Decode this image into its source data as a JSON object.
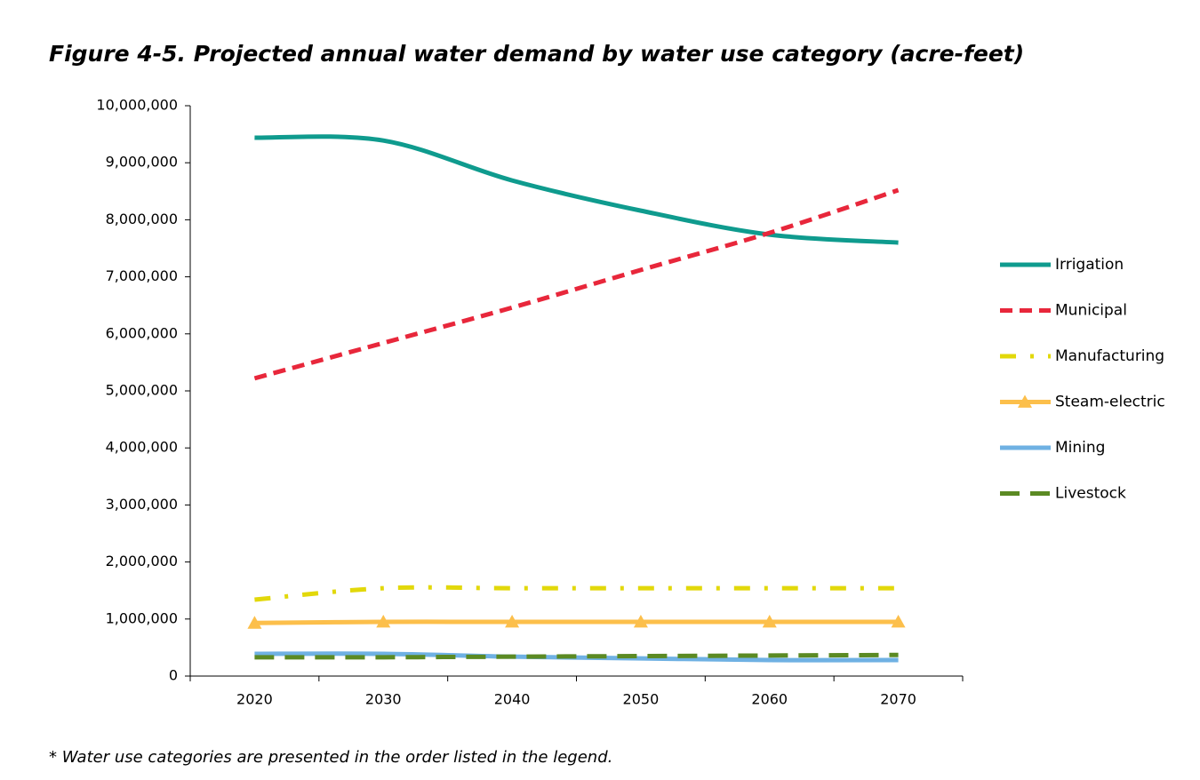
{
  "chart_data": {
    "type": "line",
    "title": "Figure 4-5. Projected annual water demand by water use category (acre-feet)",
    "footnote": "* Water use categories are presented in the order listed in the legend.",
    "categories": [
      "2020",
      "2030",
      "2040",
      "2050",
      "2060",
      "2070"
    ],
    "ylim": [
      0,
      10000000
    ],
    "yticks": [
      0,
      {
        "value": 1000000,
        "label": "1,000,000"
      },
      {
        "value": 2000000,
        "label": "2,000,000"
      },
      {
        "value": 3000000,
        "label": "3,000,000"
      },
      {
        "value": 4000000,
        "label": "4,000,000"
      },
      {
        "value": 5000000,
        "label": "5,000,000"
      },
      {
        "value": 6000000,
        "label": "6,000,000"
      },
      {
        "value": 7000000,
        "label": "7,000,000"
      },
      {
        "value": 8000000,
        "label": "8,000,000"
      },
      {
        "value": 9000000,
        "label": "9,000,000"
      },
      {
        "value": 10000000,
        "label": "10,000,000"
      }
    ],
    "smooth": true,
    "legend": "right",
    "series": [
      {
        "name": "Irrigation",
        "color": "#0f9b8e",
        "values": [
          9440000,
          9390000,
          8690000,
          8160000,
          7740000,
          7600000
        ]
      },
      {
        "name": "Municipal",
        "color": "#e8273b",
        "values": [
          5220000,
          5840000,
          6460000,
          7120000,
          7770000,
          8520000
        ]
      },
      {
        "name": "Manufacturing",
        "color": "#e2d80a",
        "values": [
          1340000,
          1540000,
          1540000,
          1540000,
          1540000,
          1540000
        ]
      },
      {
        "name": "Steam-electric",
        "color": "#fcbf4b",
        "marker": "triangle",
        "values": [
          930000,
          950000,
          950000,
          950000,
          950000,
          950000
        ]
      },
      {
        "name": "Mining",
        "color": "#6fb1e3",
        "values": [
          390000,
          390000,
          340000,
          310000,
          280000,
          280000
        ]
      },
      {
        "name": "Livestock",
        "color": "#5b8a23",
        "values": [
          330000,
          330000,
          340000,
          350000,
          360000,
          370000
        ]
      }
    ]
  }
}
